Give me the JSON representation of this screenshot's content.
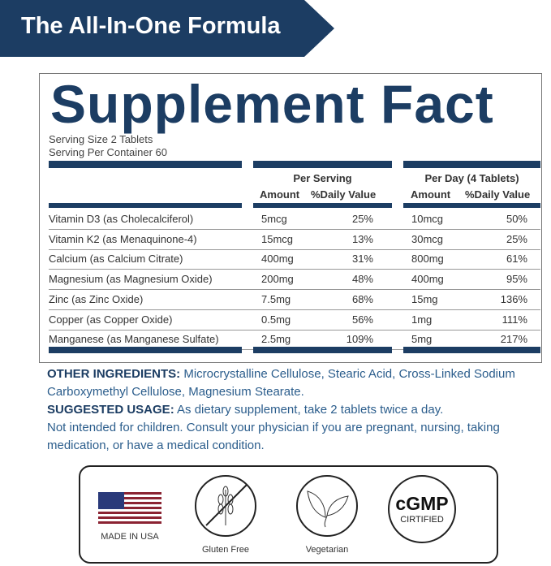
{
  "banner": {
    "title": "The All-In-One Formula"
  },
  "facts": {
    "title": "Supplement Fact",
    "serving_size": "Serving Size 2 Tablets",
    "servings_per_container": "Serving Per Container 60",
    "per_serving": "Per Serving",
    "per_day": "Per Day (4 Tablets)",
    "amount": "Amount",
    "daily_value": "%Daily Value",
    "rows": [
      {
        "name": "Vitamin D3 (as Cholecalciferol)",
        "s_amt": "5mcg",
        "s_dv": "25%",
        "d_amt": "10mcg",
        "d_dv": "50%"
      },
      {
        "name": "Vitamin K2 (as Menaquinone-4)",
        "s_amt": "15mcg",
        "s_dv": "13%",
        "d_amt": "30mcg",
        "d_dv": "25%"
      },
      {
        "name": "Calcium (as Calcium Citrate)",
        "s_amt": "400mg",
        "s_dv": "31%",
        "d_amt": "800mg",
        "d_dv": "61%"
      },
      {
        "name": "Magnesium (as Magnesium Oxide)",
        "s_amt": "200mg",
        "s_dv": "48%",
        "d_amt": "400mg",
        "d_dv": "95%"
      },
      {
        "name": "Zinc (as Zinc Oxide)",
        "s_amt": "7.5mg",
        "s_dv": "68%",
        "d_amt": "15mg",
        "d_dv": "136%"
      },
      {
        "name": "Copper (as Copper Oxide)",
        "s_amt": "0.5mg",
        "s_dv": "56%",
        "d_amt": "1mg",
        "d_dv": "111%"
      },
      {
        "name": "Manganese (as Manganese Sulfate)",
        "s_amt": "2.5mg",
        "s_dv": "109%",
        "d_amt": "5mg",
        "d_dv": "217%"
      }
    ]
  },
  "info": {
    "other_label": "OTHER INGREDIENTS:",
    "other_text": " Microcrystalline Cellulose, Stearic Acid, Cross-Linked Sodium Carboxymethyl Cellulose, Magnesium Stearate.",
    "usage_label": "SUGGESTED USAGE:",
    "usage_text": " As dietary supplement, take 2 tablets twice a day.",
    "warning": "Not intended for children. Consult your physician if you are pregnant, nursing, taking medication, or have a medical condition."
  },
  "badges": {
    "usa": "MADE IN USA",
    "gluten": "Gluten Free",
    "veg": "Vegetarian",
    "cgmp": "cGMP",
    "cert": "CIRTIFIED"
  },
  "colors": {
    "navy": "#1c3d63",
    "text_blue": "#2b5d8c"
  }
}
